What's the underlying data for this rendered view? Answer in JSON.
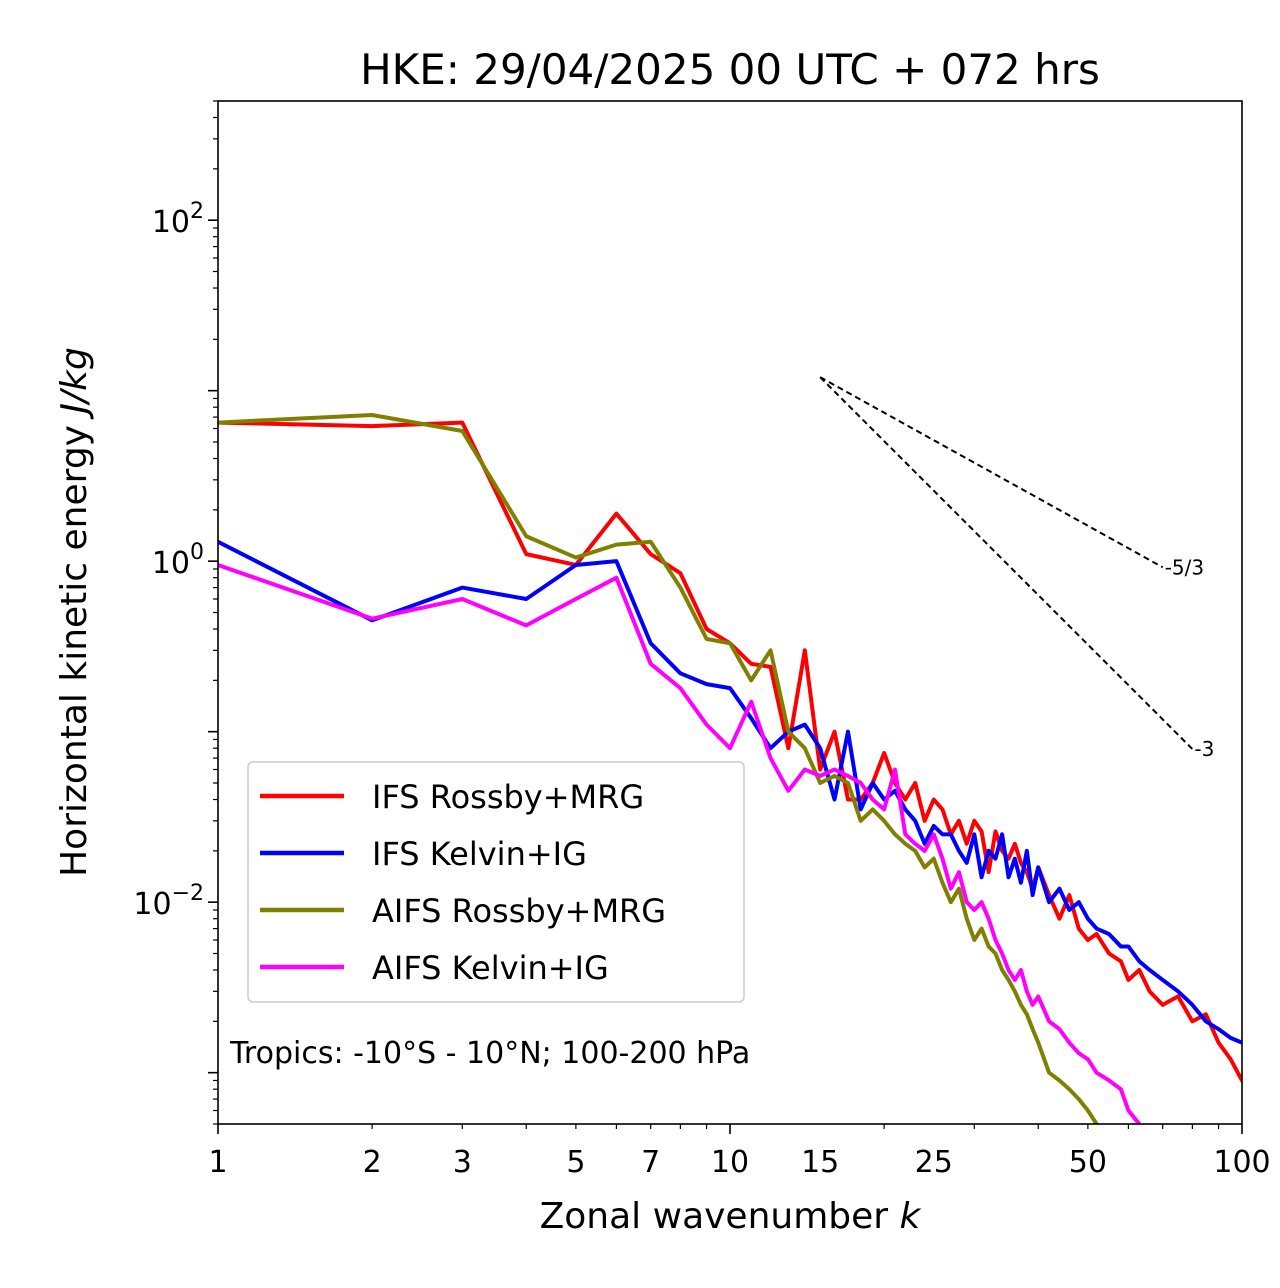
{
  "chart_data": {
    "type": "line",
    "title": "HKE: 29/04/2025 00 UTC + 072 hrs",
    "xlabel": "Zonal wavenumber",
    "xlabel_var": "k",
    "ylabel": "Horizontal kinetic energy",
    "ylabel_unit": "J/kg",
    "xscale": "log",
    "yscale": "log",
    "xlim": [
      1,
      100
    ],
    "ylim": [
      0.0005,
      500
    ],
    "x_ticks": [
      1,
      2,
      3,
      5,
      7,
      10,
      15,
      25,
      50,
      100
    ],
    "x_tick_labels": [
      "1",
      "2",
      "3",
      "5",
      "7",
      "10",
      "15",
      "25",
      "50",
      "100"
    ],
    "y_ticks": [
      {
        "value": 0.01,
        "base": "10",
        "exp": "−2"
      },
      {
        "value": 1,
        "base": "10",
        "exp": "0"
      },
      {
        "value": 100,
        "base": "10",
        "exp": "2"
      }
    ],
    "grid": false,
    "legend_position": "lower-left",
    "annotation": "Tropics: -10°S - 10°N; 100-200 hPa",
    "reference_slopes": [
      {
        "label": "-5/3",
        "exponent": -1.6667,
        "x_start": 15,
        "x_end": 70,
        "y_start": 12
      },
      {
        "label": "-3",
        "exponent": -3,
        "x_start": 15,
        "x_end": 80,
        "y_start": 12
      }
    ],
    "series": [
      {
        "name": "IFS Rossby+MRG",
        "color": "#ff0000",
        "x": [
          1,
          2,
          3,
          4,
          5,
          6,
          7,
          8,
          9,
          10,
          11,
          12,
          13,
          14,
          15,
          16,
          17,
          18,
          19,
          20,
          21,
          22,
          23,
          24,
          25,
          26,
          27,
          28,
          29,
          30,
          31,
          32,
          33,
          34,
          35,
          36,
          37,
          38,
          39,
          40,
          42,
          44,
          46,
          48,
          50,
          52,
          55,
          58,
          60,
          63,
          66,
          70,
          75,
          80,
          85,
          90,
          95,
          100
        ],
        "values": [
          6.5,
          6.2,
          6.5,
          1.1,
          0.95,
          1.9,
          1.1,
          0.85,
          0.4,
          0.33,
          0.25,
          0.24,
          0.08,
          0.3,
          0.06,
          0.1,
          0.04,
          0.04,
          0.05,
          0.075,
          0.05,
          0.04,
          0.05,
          0.03,
          0.04,
          0.035,
          0.025,
          0.03,
          0.022,
          0.03,
          0.026,
          0.015,
          0.026,
          0.02,
          0.018,
          0.022,
          0.017,
          0.015,
          0.012,
          0.016,
          0.011,
          0.008,
          0.011,
          0.007,
          0.006,
          0.0065,
          0.005,
          0.0045,
          0.0035,
          0.004,
          0.003,
          0.0025,
          0.0028,
          0.002,
          0.0022,
          0.0015,
          0.0012,
          0.0009
        ]
      },
      {
        "name": "IFS Kelvin+IG",
        "color": "#0000ff",
        "x": [
          1,
          2,
          3,
          4,
          5,
          6,
          7,
          8,
          9,
          10,
          11,
          12,
          13,
          14,
          15,
          16,
          17,
          18,
          19,
          20,
          21,
          22,
          23,
          24,
          25,
          26,
          27,
          28,
          29,
          30,
          31,
          32,
          33,
          34,
          35,
          36,
          37,
          38,
          39,
          40,
          42,
          44,
          46,
          48,
          50,
          52,
          55,
          58,
          60,
          63,
          66,
          70,
          75,
          80,
          85,
          90,
          95,
          100
        ],
        "values": [
          1.3,
          0.45,
          0.7,
          0.6,
          0.95,
          1.0,
          0.33,
          0.22,
          0.19,
          0.18,
          0.12,
          0.08,
          0.1,
          0.11,
          0.08,
          0.04,
          0.1,
          0.035,
          0.05,
          0.04,
          0.045,
          0.035,
          0.03,
          0.022,
          0.028,
          0.025,
          0.025,
          0.02,
          0.017,
          0.025,
          0.014,
          0.02,
          0.018,
          0.025,
          0.014,
          0.018,
          0.013,
          0.02,
          0.011,
          0.016,
          0.01,
          0.012,
          0.009,
          0.01,
          0.008,
          0.007,
          0.0065,
          0.0055,
          0.0055,
          0.0045,
          0.004,
          0.0035,
          0.003,
          0.0025,
          0.002,
          0.0018,
          0.0016,
          0.0015
        ]
      },
      {
        "name": "AIFS Rossby+MRG",
        "color": "#808000",
        "x": [
          1,
          2,
          3,
          4,
          5,
          6,
          7,
          8,
          9,
          10,
          11,
          12,
          13,
          14,
          15,
          16,
          17,
          18,
          19,
          20,
          21,
          22,
          23,
          24,
          25,
          26,
          27,
          28,
          29,
          30,
          31,
          32,
          33,
          34,
          35,
          36,
          37,
          38,
          39,
          40,
          42,
          44,
          46,
          48,
          50,
          52
        ],
        "values": [
          6.5,
          7.2,
          5.8,
          1.4,
          1.05,
          1.25,
          1.3,
          0.7,
          0.35,
          0.33,
          0.2,
          0.3,
          0.1,
          0.08,
          0.05,
          0.055,
          0.05,
          0.03,
          0.035,
          0.03,
          0.025,
          0.022,
          0.02,
          0.016,
          0.018,
          0.013,
          0.01,
          0.012,
          0.008,
          0.006,
          0.007,
          0.0055,
          0.005,
          0.004,
          0.0035,
          0.003,
          0.0025,
          0.0022,
          0.0018,
          0.0015,
          0.001,
          0.0009,
          0.0008,
          0.0007,
          0.0006,
          0.0005
        ]
      },
      {
        "name": "AIFS Kelvin+IG",
        "color": "#ff00ff",
        "x": [
          1,
          2,
          3,
          4,
          5,
          6,
          7,
          8,
          9,
          10,
          11,
          12,
          13,
          14,
          15,
          16,
          17,
          18,
          19,
          20,
          21,
          22,
          23,
          24,
          25,
          26,
          27,
          28,
          29,
          30,
          31,
          32,
          33,
          34,
          35,
          36,
          37,
          38,
          39,
          40,
          42,
          44,
          46,
          48,
          50,
          52,
          55,
          58,
          60,
          63
        ],
        "values": [
          0.95,
          0.46,
          0.6,
          0.42,
          0.6,
          0.8,
          0.25,
          0.18,
          0.11,
          0.08,
          0.15,
          0.07,
          0.045,
          0.06,
          0.055,
          0.06,
          0.055,
          0.05,
          0.04,
          0.035,
          0.06,
          0.025,
          0.022,
          0.02,
          0.025,
          0.018,
          0.012,
          0.015,
          0.01,
          0.009,
          0.01,
          0.008,
          0.006,
          0.005,
          0.004,
          0.0035,
          0.004,
          0.003,
          0.0025,
          0.0028,
          0.002,
          0.0018,
          0.0015,
          0.0013,
          0.0012,
          0.001,
          0.0009,
          0.0008,
          0.0006,
          0.0005
        ]
      }
    ]
  }
}
